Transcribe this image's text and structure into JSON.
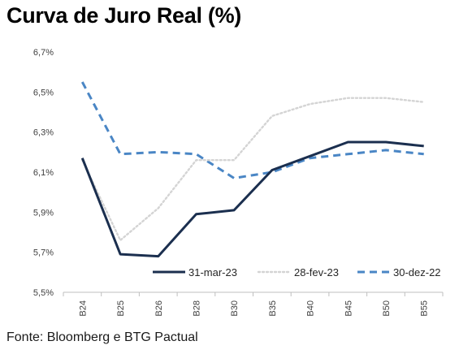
{
  "title": "Curva de Juro Real (%)",
  "source": "Fonte: Bloomberg e BTG Pactual",
  "chart_data": {
    "type": "line",
    "title": "Curva de Juro Real (%)",
    "categories": [
      "B24",
      "B25",
      "B26",
      "B28",
      "B30",
      "B35",
      "B40",
      "B45",
      "B50",
      "B55"
    ],
    "ylim": [
      5.5,
      6.7
    ],
    "yticks": [
      "5,5%",
      "5,7%",
      "5,9%",
      "6,1%",
      "6,3%",
      "6,5%",
      "6,7%"
    ],
    "grid": false,
    "legend_position": "bottom",
    "series": [
      {
        "name": "31-mar-23",
        "color": "#1b2f4f",
        "style": "solid",
        "values": [
          6.17,
          5.69,
          5.68,
          5.89,
          5.91,
          6.11,
          6.18,
          6.25,
          6.25,
          6.23
        ]
      },
      {
        "name": "28-fev-23",
        "color": "#d4d4d4",
        "style": "dotted",
        "values": [
          6.16,
          5.76,
          5.92,
          6.16,
          6.16,
          6.38,
          6.44,
          6.47,
          6.47,
          6.45
        ]
      },
      {
        "name": "30-dez-22",
        "color": "#4a86c5",
        "style": "dashed",
        "values": [
          6.55,
          6.19,
          6.2,
          6.19,
          6.07,
          6.1,
          6.17,
          6.19,
          6.21,
          6.19
        ]
      }
    ]
  }
}
